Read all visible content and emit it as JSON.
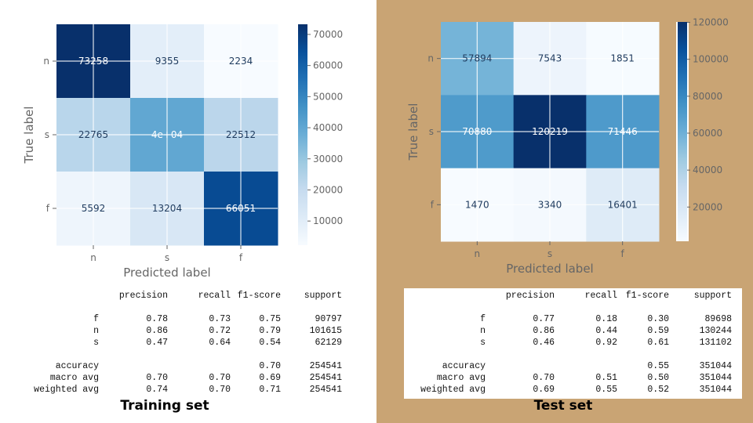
{
  "chart_data": [
    {
      "type": "heatmap",
      "xlabel": "Predicted label",
      "ylabel": "True label",
      "row_labels": [
        "n",
        "s",
        "f"
      ],
      "col_labels": [
        "n",
        "s",
        "f"
      ],
      "cell_text": [
        [
          "73258",
          "9355",
          "2234"
        ],
        [
          "22765",
          "4e+04",
          "22512"
        ],
        [
          "5592",
          "13204",
          "66051"
        ]
      ],
      "values": [
        [
          73258,
          9355,
          2234
        ],
        [
          22765,
          40000,
          22512
        ],
        [
          5592,
          13204,
          66051
        ]
      ],
      "colorbar_ticks": [
        10000,
        20000,
        30000,
        40000,
        50000,
        60000,
        70000
      ],
      "colorbar_tick_labels": [
        "10000",
        "20000",
        "30000",
        "40000",
        "50000",
        "60000",
        "70000"
      ],
      "vmin": 2234,
      "vmax": 73258,
      "colormap": "Blues",
      "grid": true
    },
    {
      "type": "heatmap",
      "xlabel": "Predicted label",
      "ylabel": "True label",
      "row_labels": [
        "n",
        "s",
        "f"
      ],
      "col_labels": [
        "n",
        "s",
        "f"
      ],
      "cell_text": [
        [
          "57894",
          "7543",
          "1851"
        ],
        [
          "70880",
          "120219",
          "71446"
        ],
        [
          "1470",
          "3340",
          "16401"
        ]
      ],
      "values": [
        [
          57894,
          7543,
          1851
        ],
        [
          70880,
          120219,
          71446
        ],
        [
          1470,
          3340,
          16401
        ]
      ],
      "colorbar_ticks": [
        20000,
        40000,
        60000,
        80000,
        100000,
        120000
      ],
      "colorbar_tick_labels": [
        "20000",
        "40000",
        "60000",
        "80000",
        "100000",
        "120000"
      ],
      "vmin": 1470,
      "vmax": 120219,
      "colormap": "Blues",
      "grid": true
    }
  ],
  "reports": [
    {
      "header": [
        "precision",
        "recall",
        "f1-score",
        "support"
      ],
      "rows": [
        [
          "f",
          "0.78",
          "0.73",
          "0.75",
          "90797"
        ],
        [
          "n",
          "0.86",
          "0.72",
          "0.79",
          "101615"
        ],
        [
          "s",
          "0.47",
          "0.64",
          "0.54",
          "62129"
        ]
      ],
      "summary": [
        [
          "accuracy",
          "",
          "",
          "0.70",
          "254541"
        ],
        [
          "macro avg",
          "0.70",
          "0.70",
          "0.69",
          "254541"
        ],
        [
          "weighted avg",
          "0.74",
          "0.70",
          "0.71",
          "254541"
        ]
      ]
    },
    {
      "header": [
        "precision",
        "recall",
        "f1-score",
        "support"
      ],
      "rows": [
        [
          "f",
          "0.77",
          "0.18",
          "0.30",
          "89698"
        ],
        [
          "n",
          "0.86",
          "0.44",
          "0.59",
          "130244"
        ],
        [
          "s",
          "0.46",
          "0.92",
          "0.61",
          "131102"
        ]
      ],
      "summary": [
        [
          "accuracy",
          "",
          "",
          "0.55",
          "351044"
        ],
        [
          "macro avg",
          "0.70",
          "0.51",
          "0.50",
          "351044"
        ],
        [
          "weighted avg",
          "0.69",
          "0.55",
          "0.52",
          "351044"
        ]
      ]
    }
  ],
  "captions": {
    "training": "Training set",
    "test": "Test set"
  },
  "colors": {
    "right_panel_bg": "#c9a474",
    "dark_text": "#ffffff",
    "light_text": "#1f3b5e",
    "axis_text": "#666666"
  }
}
